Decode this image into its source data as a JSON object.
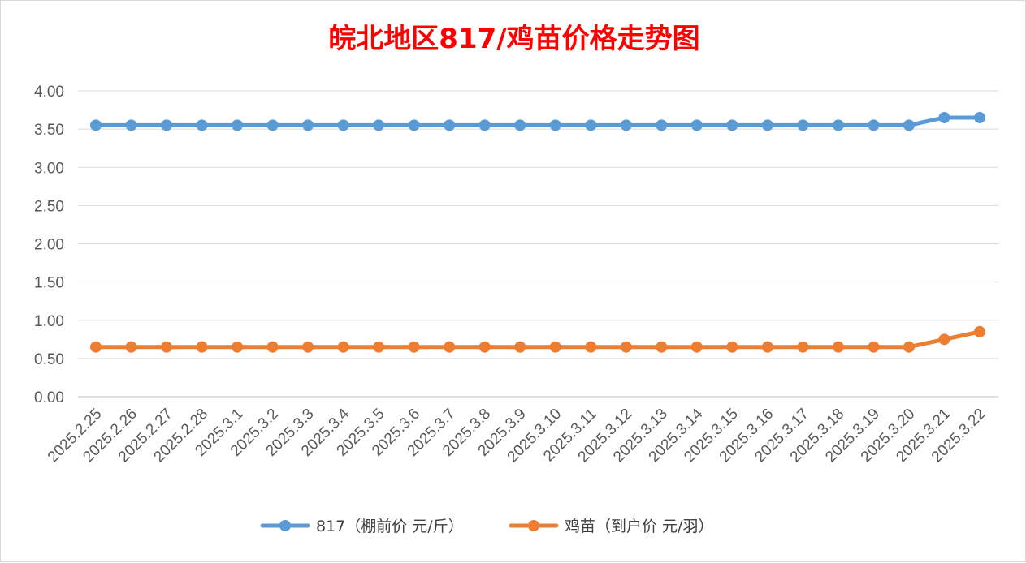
{
  "chart_data": {
    "type": "line",
    "title": "皖北地区817/鸡苗价格走势图",
    "title_color": "#ff0000",
    "xlabel": "",
    "ylabel": "",
    "ylim": [
      0,
      4
    ],
    "y_ticks": [
      "0.00",
      "0.50",
      "1.00",
      "1.50",
      "2.00",
      "2.50",
      "3.00",
      "3.50",
      "4.00"
    ],
    "grid": true,
    "legend_position": "bottom",
    "categories": [
      "2025.2.25",
      "2025.2.26",
      "2025.2.27",
      "2025.2.28",
      "2025.3.1",
      "2025.3.2",
      "2025.3.3",
      "2025.3.4",
      "2025.3.5",
      "2025.3.6",
      "2025.3.7",
      "2025.3.8",
      "2025.3.9",
      "2025.3.10",
      "2025.3.11",
      "2025.3.12",
      "2025.3.13",
      "2025.3.14",
      "2025.3.15",
      "2025.3.16",
      "2025.3.17",
      "2025.3.18",
      "2025.3.19",
      "2025.3.20",
      "2025.3.21",
      "2025.3.22"
    ],
    "series": [
      {
        "name": "817（棚前价 元/斤）",
        "color": "#5b9bd5",
        "values": [
          3.55,
          3.55,
          3.55,
          3.55,
          3.55,
          3.55,
          3.55,
          3.55,
          3.55,
          3.55,
          3.55,
          3.55,
          3.55,
          3.55,
          3.55,
          3.55,
          3.55,
          3.55,
          3.55,
          3.55,
          3.55,
          3.55,
          3.55,
          3.55,
          3.65,
          3.65
        ]
      },
      {
        "name": "鸡苗（到户价 元/羽）",
        "color": "#ed7d31",
        "values": [
          0.65,
          0.65,
          0.65,
          0.65,
          0.65,
          0.65,
          0.65,
          0.65,
          0.65,
          0.65,
          0.65,
          0.65,
          0.65,
          0.65,
          0.65,
          0.65,
          0.65,
          0.65,
          0.65,
          0.65,
          0.65,
          0.65,
          0.65,
          0.65,
          0.75,
          0.85
        ]
      }
    ]
  }
}
